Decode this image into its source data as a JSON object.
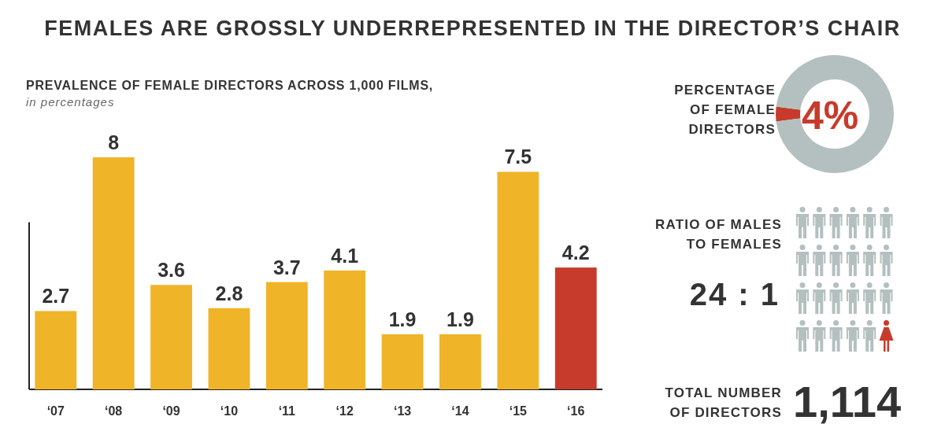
{
  "chart_data": [
    {
      "type": "bar",
      "title": "FEMALES ARE GROSSLY UNDERREPRESENTED IN THE DIRECTOR’S CHAIR",
      "subtitle": "PREVALENCE OF FEMALE DIRECTORS ACROSS 1,000 FILMS,",
      "annotations": [
        "in percentages"
      ],
      "categories": [
        "‘07",
        "‘08",
        "‘09",
        "‘10",
        "‘11",
        "‘12",
        "‘13",
        "‘14",
        "‘15",
        "‘16"
      ],
      "values": [
        2.7,
        8,
        3.6,
        2.8,
        3.7,
        4.1,
        1.9,
        1.9,
        7.5,
        4.2
      ],
      "colors": [
        "#f0b429",
        "#f0b429",
        "#f0b429",
        "#f0b429",
        "#f0b429",
        "#f0b429",
        "#f0b429",
        "#f0b429",
        "#f0b429",
        "#c63b2b"
      ],
      "data_labels": true
    },
    {
      "type": "donut",
      "title": "PERCENTAGE\nOF FEMALE\nDIRECTORS",
      "categories": [
        null,
        null
      ],
      "values": [
        4,
        96
      ],
      "colors": [
        "#c63b2b",
        "#b4c0bf"
      ],
      "value_labels": [
        "4%",
        null
      ]
    },
    {
      "type": "other",
      "title": "RATIO OF MALES\nTO FEMALES",
      "annotations": [
        "24 : 1"
      ]
    },
    {
      "type": "other",
      "title": "TOTAL NUMBER\nOF DIRECTORS",
      "annotations": [
        "1,114"
      ]
    }
  ]
}
